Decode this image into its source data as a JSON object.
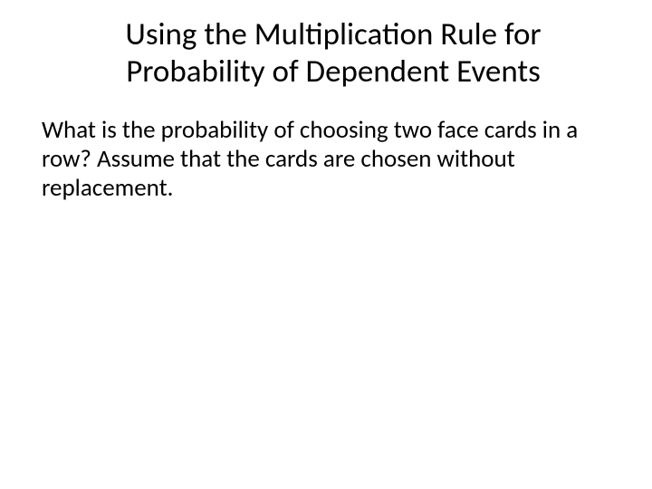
{
  "slide": {
    "title": "Using the Multiplication Rule for Probability of Dependent Events",
    "body": "What is the probability of choosing two face cards in a row? Assume that the cards are chosen without replacement.",
    "background_color": "#ffffff",
    "text_color": "#000000",
    "title_fontsize": 35,
    "body_fontsize": 27,
    "font_family": "Calibri"
  }
}
